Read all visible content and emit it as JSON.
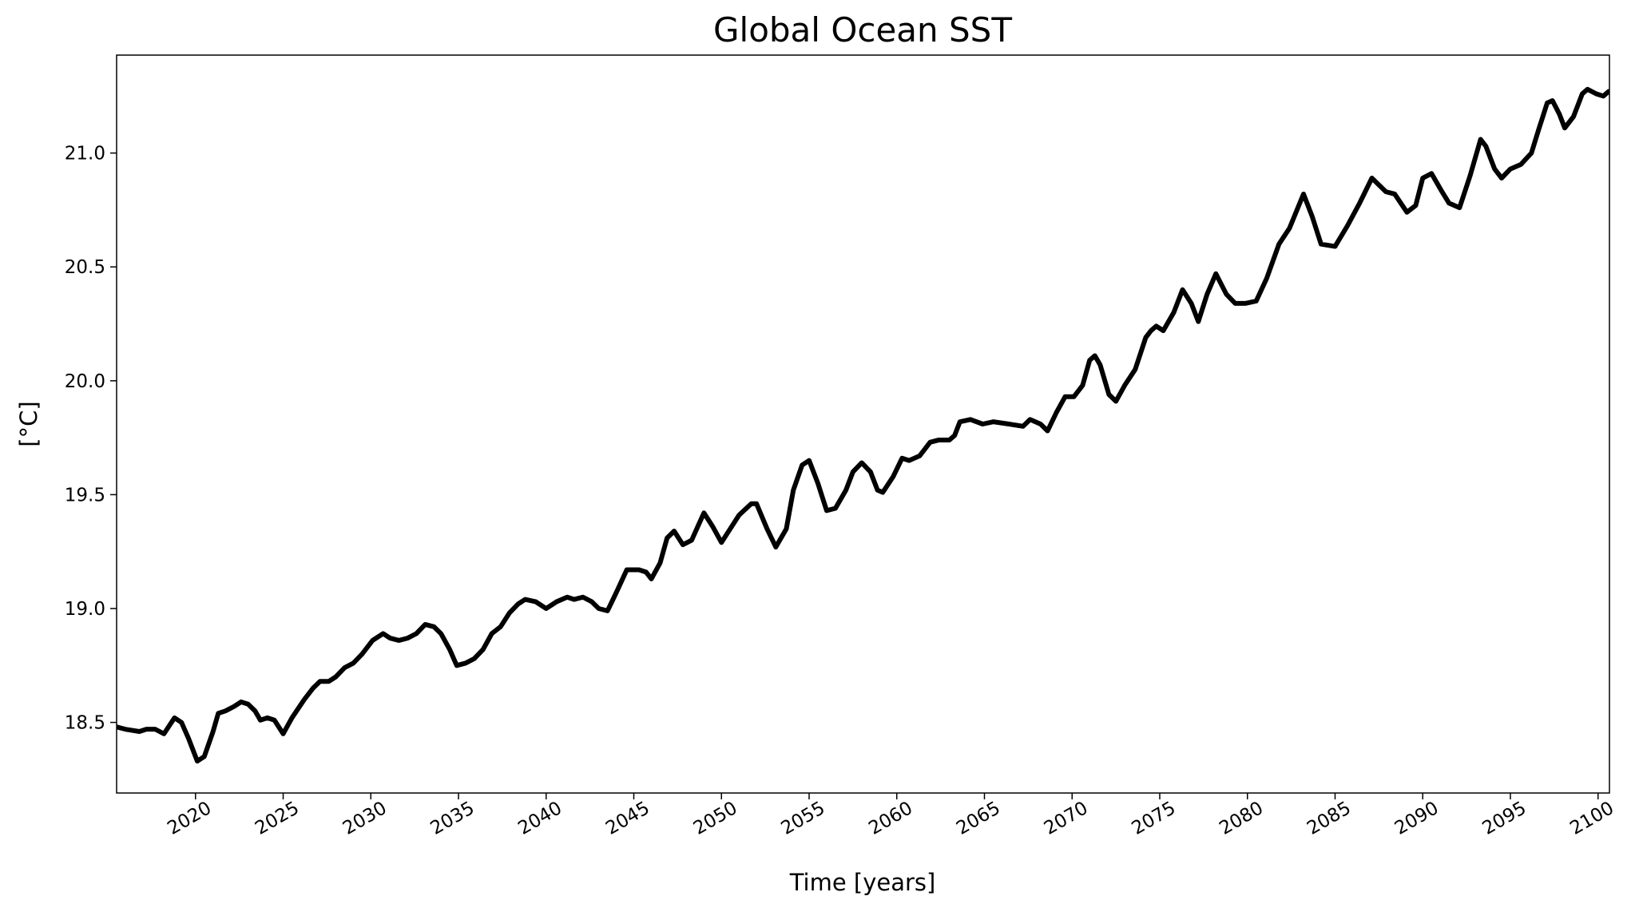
{
  "chart_data": {
    "type": "line",
    "title": "Global Ocean SST",
    "x_label": "Time [years]",
    "y_label": "[°C]",
    "color": "#000000",
    "x": [
      2015.5,
      2016,
      2016.8,
      2017.2,
      2017.7,
      2018.2,
      2018.8,
      2019.2,
      2019.6,
      2020.1,
      2020.5,
      2021.0,
      2021.3,
      2021.7,
      2022.2,
      2022.6,
      2023.0,
      2023.4,
      2023.7,
      2024.1,
      2024.5,
      2025.0,
      2025.5,
      2026.2,
      2026.7,
      2027.1,
      2027.6,
      2028.0,
      2028.5,
      2029.0,
      2029.5,
      2030.1,
      2030.7,
      2031.1,
      2031.6,
      2032.1,
      2032.6,
      2033.1,
      2033.6,
      2034.0,
      2034.5,
      2034.9,
      2035.4,
      2035.9,
      2036.4,
      2036.9,
      2037.4,
      2037.9,
      2038.4,
      2038.8,
      2039.4,
      2040.0,
      2040.6,
      2041.2,
      2041.6,
      2042.1,
      2042.6,
      2043.0,
      2043.5,
      2044.0,
      2044.6,
      2045.3,
      2045.7,
      2046.0,
      2046.5,
      2046.9,
      2047.3,
      2047.8,
      2048.3,
      2049.0,
      2049.5,
      2050.0,
      2050.5,
      2051.0,
      2051.7,
      2052.0,
      2052.6,
      2053.1,
      2053.7,
      2054.1,
      2054.6,
      2055.0,
      2055.5,
      2056.0,
      2056.5,
      2057.1,
      2057.5,
      2058.0,
      2058.5,
      2058.9,
      2059.2,
      2059.8,
      2060.3,
      2060.7,
      2061.3,
      2061.9,
      2062.4,
      2063.0,
      2063.3,
      2063.6,
      2064.2,
      2064.9,
      2065.5,
      2066.4,
      2067.2,
      2067.6,
      2068.2,
      2068.6,
      2069.1,
      2069.6,
      2070.1,
      2070.6,
      2071.0,
      2071.3,
      2071.6,
      2072.1,
      2072.5,
      2073.0,
      2073.6,
      2074.2,
      2074.5,
      2074.8,
      2075.2,
      2075.8,
      2076.3,
      2076.8,
      2077.2,
      2077.7,
      2078.2,
      2078.8,
      2079.3,
      2079.9,
      2080.5,
      2081.1,
      2081.8,
      2082.4,
      2083.2,
      2083.7,
      2084.2,
      2085.0,
      2085.7,
      2086.4,
      2087.1,
      2087.9,
      2088.4,
      2089.1,
      2089.6,
      2090.0,
      2090.5,
      2091.1,
      2091.5,
      2092.1,
      2092.7,
      2093.3,
      2093.6,
      2094.1,
      2094.5,
      2095.0,
      2095.6,
      2096.2,
      2096.6,
      2097.1,
      2097.4,
      2097.8,
      2098.1,
      2098.6,
      2099.1,
      2099.4,
      2099.9,
      2100.3,
      2100.6
    ],
    "values": [
      18.48,
      18.47,
      18.46,
      18.47,
      18.47,
      18.45,
      18.52,
      18.5,
      18.43,
      18.33,
      18.35,
      18.46,
      18.54,
      18.55,
      18.57,
      18.59,
      18.58,
      18.55,
      18.51,
      18.52,
      18.51,
      18.45,
      18.52,
      18.6,
      18.65,
      18.68,
      18.68,
      18.7,
      18.74,
      18.76,
      18.8,
      18.86,
      18.89,
      18.87,
      18.86,
      18.87,
      18.89,
      18.93,
      18.92,
      18.89,
      18.82,
      18.75,
      18.76,
      18.78,
      18.82,
      18.89,
      18.92,
      18.98,
      19.02,
      19.04,
      19.03,
      19.0,
      19.03,
      19.05,
      19.04,
      19.05,
      19.03,
      19.0,
      18.99,
      19.07,
      19.17,
      19.17,
      19.16,
      19.13,
      19.2,
      19.31,
      19.34,
      19.28,
      19.3,
      19.42,
      19.36,
      19.29,
      19.35,
      19.41,
      19.46,
      19.46,
      19.35,
      19.27,
      19.35,
      19.52,
      19.63,
      19.65,
      19.55,
      19.43,
      19.44,
      19.52,
      19.6,
      19.64,
      19.6,
      19.52,
      19.51,
      19.58,
      19.66,
      19.65,
      19.67,
      19.73,
      19.74,
      19.74,
      19.76,
      19.82,
      19.83,
      19.81,
      19.82,
      19.81,
      19.8,
      19.83,
      19.81,
      19.78,
      19.86,
      19.93,
      19.93,
      19.98,
      20.09,
      20.11,
      20.07,
      19.94,
      19.91,
      19.98,
      20.05,
      20.19,
      20.22,
      20.24,
      20.22,
      20.3,
      20.4,
      20.34,
      20.26,
      20.38,
      20.47,
      20.38,
      20.34,
      20.34,
      20.35,
      20.45,
      20.6,
      20.67,
      20.82,
      20.72,
      20.6,
      20.59,
      20.68,
      20.78,
      20.89,
      20.83,
      20.82,
      20.74,
      20.77,
      20.89,
      20.91,
      20.83,
      20.78,
      20.76,
      20.9,
      21.06,
      21.03,
      20.93,
      20.89,
      20.93,
      20.95,
      21.0,
      21.1,
      21.22,
      21.23,
      21.17,
      21.11,
      21.16,
      21.26,
      21.28,
      21.26,
      21.25,
      21.27
    ],
    "xlim": [
      2015.5,
      2100.65
    ],
    "ylim": [
      18.19,
      21.43
    ],
    "xticks": [
      2020,
      2025,
      2030,
      2035,
      2040,
      2045,
      2050,
      2055,
      2060,
      2065,
      2070,
      2075,
      2080,
      2085,
      2090,
      2095,
      2100
    ],
    "yticks": [
      18.5,
      {
        "value": 19.0,
        "label": "19.0"
      },
      19.5,
      {
        "value": 20.0,
        "label": "20.0"
      },
      20.5,
      {
        "value": 21.0,
        "label": "21.0"
      }
    ]
  }
}
